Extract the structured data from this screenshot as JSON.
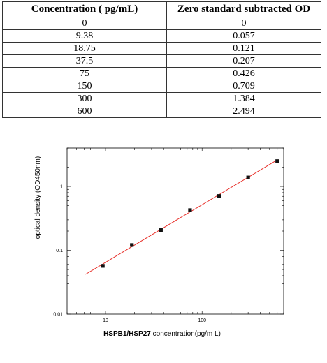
{
  "table": {
    "headers": [
      "Concentration ( pg/mL)",
      "Zero standard subtracted OD"
    ],
    "rows": [
      [
        "0",
        "0"
      ],
      [
        "9.38",
        "0.057"
      ],
      [
        "18.75",
        "0.121"
      ],
      [
        "37.5",
        "0.207"
      ],
      [
        "75",
        "0.426"
      ],
      [
        "150",
        "0.709"
      ],
      [
        "300",
        "1.384"
      ],
      [
        "600",
        "2.494"
      ]
    ]
  },
  "chart_data": {
    "type": "scatter",
    "xlabel_bold": "HSPB1/HSP27",
    "xlabel_rest": " concentration(pg/m L)",
    "ylabel": "optical density (OD450nm)",
    "xscale": "log",
    "yscale": "log",
    "xlim": [
      4,
      700
    ],
    "ylim": [
      0.01,
      4
    ],
    "xticks": [
      10,
      100
    ],
    "xtick_labels": [
      "10",
      "100"
    ],
    "yticks": [
      0.01,
      0.1,
      1
    ],
    "ytick_labels": [
      "0.01",
      "0.1",
      "1"
    ],
    "grid": false,
    "points": {
      "x": [
        9.38,
        18.75,
        37.5,
        75,
        150,
        300,
        600
      ],
      "y": [
        0.057,
        0.121,
        0.207,
        0.426,
        0.709,
        1.384,
        2.494
      ]
    },
    "fit_line": {
      "x": [
        6.2,
        600
      ],
      "y": [
        0.042,
        2.6
      ],
      "color": "#e8302a"
    },
    "marker_color": "#111111"
  }
}
